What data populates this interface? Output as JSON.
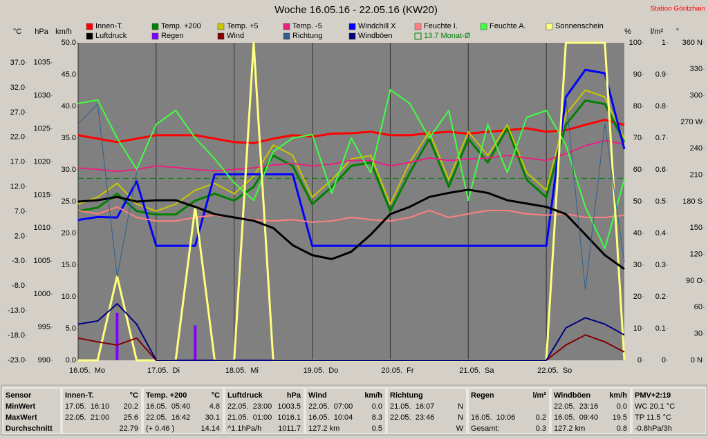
{
  "chart_data": {
    "type": "line",
    "title": "Woche 16.05.16 - 22.05.16 (KW20)",
    "station": "Station Göritzhain",
    "xlim": [
      0,
      168
    ],
    "xticks": [
      {
        "value": 0,
        "label": "16.05.  Mo"
      },
      {
        "value": 24,
        "label": "17.05.  Di"
      },
      {
        "value": 48,
        "label": "18.05.  Mi"
      },
      {
        "value": 72,
        "label": "19.05.  Do"
      },
      {
        "value": 96,
        "label": "20.05.  Fr"
      },
      {
        "value": 120,
        "label": "21.05.  Sa"
      },
      {
        "value": 144,
        "label": "22.05.  So"
      }
    ],
    "grid": true,
    "axes": {
      "temp": {
        "label": "°C",
        "side": "left",
        "lim": [
          -23,
          41.04
        ],
        "ticks": [
          {
            "value": 37,
            "label": "37.0"
          },
          {
            "value": 32,
            "label": "32.0"
          },
          {
            "value": 27,
            "label": "27.0"
          },
          {
            "value": 22,
            "label": "22.0"
          },
          {
            "value": 17,
            "label": "17.0"
          },
          {
            "value": 12,
            "label": "12.0"
          },
          {
            "value": 7,
            "label": "7.0"
          },
          {
            "value": 2,
            "label": "2.0"
          },
          {
            "value": -3,
            "label": "-3.0"
          },
          {
            "value": -8,
            "label": "-8.0"
          },
          {
            "value": -13,
            "label": "-13.0"
          },
          {
            "value": -18,
            "label": "-18.0"
          },
          {
            "value": -23,
            "label": "-23.0"
          }
        ]
      },
      "hpa": {
        "label": "hPa",
        "side": "left",
        "lim": [
          990,
          1038
        ],
        "ticks": [
          1035,
          1030,
          1025,
          1020,
          1015,
          1010,
          1005,
          1000,
          995,
          990
        ]
      },
      "kmh": {
        "label": "km/h",
        "side": "left",
        "lim": [
          0,
          50
        ],
        "ticks": [
          {
            "value": 50,
            "label": "50.0"
          },
          {
            "value": 45,
            "label": "45.0"
          },
          {
            "value": 40,
            "label": "40.0"
          },
          {
            "value": 35,
            "label": "35.0"
          },
          {
            "value": 30,
            "label": "30.0"
          },
          {
            "value": 25,
            "label": "25.0"
          },
          {
            "value": 20,
            "label": "20.0"
          },
          {
            "value": 15,
            "label": "15.0"
          },
          {
            "value": 10,
            "label": "10.0"
          },
          {
            "value": 5,
            "label": "5.0"
          },
          {
            "value": 0,
            "label": "0.0"
          }
        ]
      },
      "pct": {
        "label": "%",
        "side": "right",
        "lim": [
          0,
          100
        ],
        "ticks": [
          100,
          90,
          80,
          70,
          60,
          50,
          40,
          30,
          20,
          10,
          0
        ]
      },
      "lm2": {
        "label": "l/m²",
        "side": "right",
        "lim": [
          0,
          1
        ],
        "ticks": [
          1,
          0.9,
          0.8,
          0.7,
          0.6,
          0.5,
          0.4,
          0.3,
          0.2,
          0.1,
          0
        ]
      },
      "deg": {
        "label": "°",
        "side": "right",
        "lim": [
          0,
          360
        ],
        "ticks": [
          {
            "value": 360,
            "label": "360 N"
          },
          330,
          300,
          {
            "value": 270,
            "label": "270 W"
          },
          240,
          210,
          {
            "value": 180,
            "label": "180 S"
          },
          150,
          120,
          {
            "value": 90,
            "label": "90 O"
          },
          60,
          30,
          {
            "value": 0,
            "label": "0 N"
          }
        ]
      }
    },
    "x": [
      0,
      6,
      12,
      18,
      24,
      30,
      36,
      42,
      48,
      54,
      60,
      66,
      72,
      78,
      84,
      90,
      96,
      102,
      108,
      114,
      120,
      126,
      132,
      138,
      144,
      150,
      156,
      162,
      168
    ],
    "series": [
      {
        "name": "Innen-T.",
        "color": "#ff0000",
        "axis": "temp",
        "width": 3,
        "values": [
          22.4,
          21.7,
          21.0,
          21.7,
          22.4,
          22.4,
          22.4,
          21.7,
          21.0,
          20.8,
          21.7,
          22.4,
          22.1,
          22.7,
          22.8,
          23.1,
          22.4,
          22.4,
          22.8,
          23.1,
          22.7,
          23.1,
          23.4,
          23.8,
          23.1,
          23.4,
          24.5,
          25.5,
          24.5
        ]
      },
      {
        "name": "Temp. +200",
        "color": "#008000",
        "axis": "temp",
        "width": 3,
        "values": [
          7.1,
          7.8,
          10.6,
          7.1,
          6.4,
          6.4,
          9.2,
          10.6,
          9.2,
          12.0,
          18.3,
          16.2,
          8.5,
          12.0,
          16.2,
          16.9,
          7.1,
          14.8,
          21.7,
          12.0,
          21.7,
          16.9,
          23.8,
          13.4,
          9.9,
          24.5,
          29.4,
          28.7,
          21.0
        ]
      },
      {
        "name": "Temp. +5",
        "color": "#c8c800",
        "axis": "temp",
        "width": 2,
        "values": [
          8.5,
          9.9,
          12.7,
          8.5,
          7.1,
          8.5,
          11.3,
          12.7,
          10.6,
          14.1,
          20.4,
          18.3,
          9.9,
          13.4,
          17.6,
          18.3,
          8.5,
          16.9,
          23.1,
          13.4,
          23.1,
          18.3,
          24.5,
          14.8,
          11.3,
          26.6,
          31.5,
          30.1,
          21.7
        ]
      },
      {
        "name": "Temp. -5",
        "color": "#e8207f",
        "axis": "temp",
        "width": 2,
        "values": [
          15.8,
          15.5,
          15.1,
          15.5,
          16.2,
          15.9,
          15.5,
          15.2,
          15.5,
          15.8,
          16.4,
          16.7,
          16.2,
          16.6,
          17.3,
          17.3,
          16.2,
          16.9,
          17.8,
          17.3,
          17.6,
          17.8,
          18.3,
          17.8,
          17.3,
          18.7,
          20.3,
          21.3,
          20.6
        ]
      },
      {
        "name": "Windchill X",
        "color": "#0000ff",
        "axis": "temp",
        "width": 3,
        "values": [
          5.3,
          5.9,
          5.8,
          13.1,
          0.1,
          0.1,
          0.1,
          14.5,
          14.5,
          14.5,
          14.5,
          14.5,
          0.1,
          0.1,
          0.1,
          0.1,
          0.1,
          0.1,
          0.1,
          0.1,
          0.1,
          0.1,
          0.1,
          0.1,
          0.1,
          30.1,
          35.6,
          34.9,
          19.6
        ]
      },
      {
        "name": "Feuchte I.",
        "color": "#ff8080",
        "axis": "pct",
        "width": 2,
        "values": [
          47.2,
          46.1,
          48.3,
          45.0,
          43.9,
          43.9,
          45.0,
          45.7,
          45.0,
          44.3,
          43.9,
          44.3,
          43.5,
          43.9,
          45.0,
          44.3,
          43.9,
          45.0,
          47.2,
          45.0,
          46.1,
          47.2,
          47.2,
          46.1,
          45.7,
          46.1,
          45.0,
          45.0,
          45.7
        ]
      },
      {
        "name": "Feuchte A.",
        "color": "#40ff40",
        "axis": "pct",
        "width": 2,
        "values": [
          80.9,
          82.0,
          70.0,
          60.2,
          74.3,
          78.7,
          70.0,
          63.5,
          55.9,
          50.4,
          65.7,
          70.0,
          71.1,
          52.6,
          70.0,
          59.1,
          85.2,
          80.9,
          70.0,
          78.7,
          50.4,
          74.3,
          59.1,
          76.5,
          78.7,
          67.8,
          48.3,
          35.2,
          57.0
        ]
      },
      {
        "name": "Sonnenschein",
        "color": "#ffff80",
        "axis": "pct",
        "width": 3,
        "values": [
          0,
          0,
          26.5,
          0,
          0,
          0,
          48.3,
          0,
          0,
          100,
          0,
          0,
          0,
          0,
          0,
          0,
          0,
          0,
          0,
          0,
          0,
          0,
          0,
          0,
          0,
          100,
          100,
          100,
          0
        ]
      },
      {
        "name": "Luftdruck",
        "color": "#000000",
        "axis": "hpa",
        "width": 3,
        "values": [
          1014.0,
          1014.2,
          1014.7,
          1014.0,
          1014.2,
          1014.2,
          1013.2,
          1012.1,
          1011.6,
          1011.1,
          1010.0,
          1007.4,
          1005.9,
          1005.3,
          1006.4,
          1009.0,
          1012.1,
          1013.2,
          1014.7,
          1015.3,
          1015.8,
          1015.3,
          1014.2,
          1013.7,
          1013.2,
          1012.1,
          1009.0,
          1005.9,
          1003.8
        ]
      },
      {
        "name": "Regen",
        "color": "#8000ff",
        "axis": "lm2",
        "style": "bar",
        "values": [
          0,
          0,
          0.15,
          0,
          0,
          0,
          0.11,
          0,
          0,
          0,
          0,
          0,
          0,
          0,
          0,
          0,
          0,
          0,
          0,
          0,
          0,
          0,
          0,
          0,
          0,
          0,
          0,
          0,
          0
        ]
      },
      {
        "name": "Wind",
        "color": "#800000",
        "axis": "kmh",
        "width": 2,
        "values": [
          3.5,
          2.9,
          2.4,
          3.5,
          0,
          0,
          0,
          0,
          0,
          0,
          0,
          0,
          0,
          0,
          0,
          0,
          0,
          0,
          0,
          0,
          0,
          0,
          0,
          0,
          0,
          2.4,
          4.0,
          2.9,
          1.3
        ]
      },
      {
        "name": "Richtung",
        "color": "#2f5f8f",
        "axis": "deg",
        "width": 1,
        "values": [
          268,
          291,
          95,
          213,
          null,
          null,
          null,
          null,
          null,
          null,
          null,
          null,
          null,
          null,
          null,
          null,
          null,
          null,
          null,
          null,
          null,
          null,
          null,
          null,
          null,
          299,
          80,
          268,
          111
        ]
      },
      {
        "name": "Windböen",
        "color": "#000080",
        "axis": "kmh",
        "width": 2,
        "values": [
          5.7,
          6.2,
          8.9,
          5.7,
          0,
          0,
          0,
          0,
          0,
          0,
          0,
          0,
          0,
          0,
          0,
          0,
          0,
          0,
          0,
          0,
          0,
          0,
          0,
          0,
          0,
          5.1,
          6.7,
          5.7,
          4.0
        ]
      }
    ],
    "reference": {
      "label": "13.7 Monat-Ø",
      "value": 13.7,
      "axis": "temp",
      "color": "#008000"
    }
  },
  "table": {
    "row_labels": [
      "Sensor",
      "MinWert",
      "MaxWert",
      "Durchschnitt"
    ],
    "columns": [
      {
        "head": "Innen-T.",
        "unit": "°C",
        "cells": [
          [
            "17.05.  16:10",
            "20.2"
          ],
          [
            "22.05.  21:00",
            "25.6"
          ],
          [
            null,
            "22.79"
          ]
        ]
      },
      {
        "head": "Temp. +200",
        "unit": "°C",
        "cells": [
          [
            "16.05.  05:40",
            "4.8"
          ],
          [
            "22.05.  16:42",
            "30.1"
          ],
          [
            "(+ 0.46 )",
            "14.14"
          ]
        ]
      },
      {
        "head": "Luftdruck",
        "unit": "hPa",
        "cells": [
          [
            "22.05.  23:00",
            "1003.5"
          ],
          [
            "21.05.  01:00",
            "1016.1"
          ],
          [
            "^1.1hPa/h",
            "1011.7"
          ]
        ]
      },
      {
        "head": "Wind",
        "unit": "km/h",
        "cells": [
          [
            "22.05.  07:00",
            "0.0"
          ],
          [
            "16.05.  10:04",
            "8.3"
          ],
          [
            "127.2 km",
            "0.5"
          ]
        ]
      },
      {
        "head": "Richtung",
        "unit": null,
        "cells": [
          [
            "21.05.  16:07",
            "N"
          ],
          [
            "22.05.  23:46",
            "N"
          ],
          [
            null,
            "W"
          ]
        ]
      },
      {
        "head": "Regen",
        "unit": "l/m²",
        "cells": [
          [
            null,
            null
          ],
          [
            "16.05.  10:06",
            "0.2"
          ],
          [
            "Gesamt:",
            "0.3"
          ]
        ]
      },
      {
        "head": "Windböen",
        "unit": "km/h",
        "cells": [
          [
            "22.05.  23:16",
            "0.0"
          ],
          [
            "16.05.  09:40",
            "19.5"
          ],
          [
            "127.2 km",
            "0.8"
          ]
        ]
      },
      {
        "head": "PMV+2:19",
        "unit": null,
        "cells": [
          [
            "WC 20.1 °C",
            null
          ],
          [
            "TP 11.5 °C",
            null
          ],
          [
            "-0.8hPa/3h",
            null
          ]
        ]
      }
    ]
  }
}
